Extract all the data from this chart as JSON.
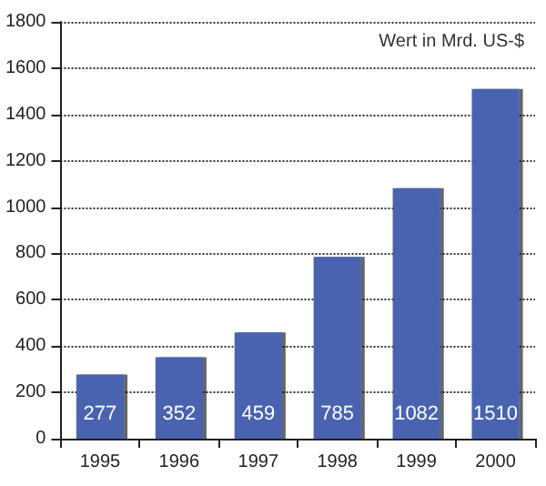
{
  "chart_data": {
    "type": "bar",
    "annotations": [
      "Wert in Mrd. US-$"
    ],
    "categories": [
      "1995",
      "1996",
      "1997",
      "1998",
      "1999",
      "2000"
    ],
    "values": [
      277,
      352,
      459,
      785,
      1082,
      1510
    ],
    "color": "#4a64b0",
    "data_labels": true,
    "ylim": [
      0,
      1800
    ],
    "yticks": [
      0,
      200,
      400,
      600,
      800,
      1000,
      1200,
      1400,
      1600,
      1800
    ],
    "grid": "y"
  }
}
